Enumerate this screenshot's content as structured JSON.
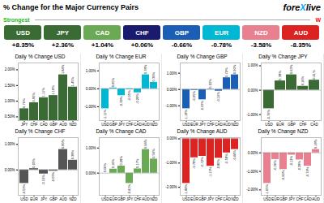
{
  "title": "% Change for the Major Currency Pairs",
  "annotations": [
    {
      "text": "fore"
    },
    {
      "text": "X",
      "color": "#00aaff"
    },
    {
      "text": "live"
    }
  ],
  "chart_data": [
    {
      "type": "ticker",
      "categories": [
        "USD",
        "JPY",
        "CAD",
        "CHF",
        "GBP",
        "EUR",
        "NZD",
        "AUD"
      ],
      "values": [
        8.35,
        2.36,
        1.04,
        0.06,
        -0.66,
        -0.78,
        -3.58,
        -8.35
      ],
      "value_labels": [
        "+8.35%",
        "+2.36%",
        "+1.04%",
        "+0.06%",
        "-0.66%",
        "-0.78%",
        "-3.58%",
        "-8.35%"
      ],
      "colors": [
        "#3a6b35",
        "#3a6b35",
        "#6aaa55",
        "#1a1a6e",
        "#1a5eb5",
        "#00b8d4",
        "#e88090",
        "#dd2222"
      ],
      "annotations": [
        {
          "text": "Strongest",
          "color": "#22bb22"
        },
        {
          "text": "W",
          "color": "red"
        }
      ],
      "data_labels": true
    },
    {
      "type": "bar",
      "title": "Daily % Change USD",
      "categories": [
        "JPY",
        "CHF",
        "CAD",
        "GBP",
        "AUD",
        "NZD"
      ],
      "values": [
        0.76,
        0.95,
        1.11,
        1.18,
        1.84,
        1.45
      ],
      "value_labels": [
        "0.76%",
        "0.95%",
        "1.11%",
        "1.18%",
        "1.84%",
        "1.45%"
      ],
      "color": "#3a6b35",
      "ylim": [
        0.382,
        2.218
      ],
      "yticks": [
        {
          "value": 0.5,
          "label": "0.50%"
        },
        {
          "value": 1,
          "label": "1.00%"
        },
        {
          "value": 1.5,
          "label": "1.50%"
        },
        {
          "value": 2,
          "label": "2.00%"
        }
      ],
      "data_labels": true
    },
    {
      "type": "bar",
      "title": "Daily % Change EUR",
      "categories": [
        "USD",
        "GBP",
        "JPY",
        "CHF",
        "CAD",
        "AUD",
        "NZD"
      ],
      "values": [
        -1.11,
        0.05,
        -0.38,
        -0.05,
        -0.22,
        0.78,
        0.36
      ],
      "value_labels": [
        "-1.11%",
        "0.05%",
        "-0.38%",
        "-0.05%",
        "-0.22%",
        "0.78%",
        "0.36%"
      ],
      "color": "#00b8d4",
      "ylim": [
        -1.7715,
        1.4415
      ],
      "yticks": [
        {
          "value": -1,
          "label": "-1.00%"
        },
        {
          "value": 0,
          "label": "0.00%"
        },
        {
          "value": 1,
          "label": "1.00%"
        }
      ],
      "data_labels": true
    },
    {
      "type": "bar",
      "title": "Daily % Change GBP",
      "categories": [
        "USD",
        "EUR",
        "JPY",
        "CHF",
        "CAD",
        "AUD",
        "NZD"
      ],
      "values": [
        -1.18,
        -0.05,
        -0.63,
        0.025,
        -0.1,
        0.72,
        0.9
      ],
      "value_labels": [
        "-1.18%",
        "-0.05%",
        "-0.63%",
        "0.03%",
        "-0.10%",
        "0.72%",
        "0.90%"
      ],
      "color": "#1a5eb5",
      "ylim": [
        -1.908,
        1.628
      ],
      "yticks": [
        {
          "value": -1,
          "label": "-1.00%"
        },
        {
          "value": 0,
          "label": "0.00%"
        },
        {
          "value": 1,
          "label": "1.00%"
        }
      ],
      "data_labels": true
    },
    {
      "type": "bar",
      "title": "Daily % Change JPY",
      "categories": [
        "USD",
        "EUR",
        "GBP",
        "CHF",
        "CAD"
      ],
      "values": [
        -0.76,
        0.38,
        0.63,
        0.16,
        0.41
      ],
      "value_labels": [
        "-0.76%",
        "0.38%",
        "0.63%",
        "0.16%",
        "0.41%"
      ],
      "color": "#3a6b35",
      "ylim": [
        -1.2465,
        1.1165
      ],
      "yticks": [
        {
          "value": -1,
          "label": "-1.00%"
        },
        {
          "value": 0,
          "label": "0.00%"
        },
        {
          "value": 1,
          "label": "1.00%"
        }
      ],
      "data_labels": true
    },
    {
      "type": "bar",
      "title": "Daily % Change CHF",
      "categories": [
        "USD",
        "EUR",
        "JPY",
        "GBP",
        "AUD",
        "NZD"
      ],
      "values": [
        -0.53,
        0.05,
        -0.16,
        -0.05,
        0.8,
        0.38
      ],
      "value_labels": [
        "-0.53%",
        "0.05%",
        "-0.16%",
        "-0.05%",
        "0.80%",
        "0.38%"
      ],
      "color": "#555555",
      "ylim": [
        -0.9955,
        1.2655
      ],
      "yticks": [
        {
          "value": 0,
          "label": "0.00%"
        },
        {
          "value": 1,
          "label": "1.00%"
        }
      ],
      "data_labels": true
    },
    {
      "type": "bar",
      "title": "Daily % Change CAD",
      "categories": [
        "USD",
        "EUR",
        "GBP",
        "JPY",
        "CHF",
        "AUD",
        "NZD"
      ],
      "values": [
        0.0,
        0.16,
        0.28,
        -0.41,
        0.17,
        0.94,
        0.56
      ],
      "value_labels": [
        "0.00%",
        "0.16%",
        "0.28%",
        "-0.41%",
        "0.17%",
        "0.94%",
        "0.56%"
      ],
      "color": "#6aaa55",
      "ylim": [
        -0.8825,
        1.4125
      ],
      "yticks": [
        {
          "value": 0,
          "label": "0.00%"
        },
        {
          "value": 1,
          "label": "1.00%"
        }
      ],
      "data_labels": true
    },
    {
      "type": "bar",
      "title": "Daily % Change AUD",
      "categories": [
        "USD",
        "EUR",
        "GBP",
        "JPY",
        "CHF",
        "CAD",
        "NZD"
      ],
      "values": [
        -1.84,
        -0.78,
        -0.72,
        -1.13,
        -0.8,
        -0.58,
        -0.44
      ],
      "value_labels": [
        "-1.84%",
        "-0.78%",
        "-0.72%",
        "-1.13%",
        "-0.80%",
        "-0.58%",
        "-0.44%"
      ],
      "color": "#dd2222",
      "ylim": [
        -2.33,
        0.05
      ],
      "yticks": [
        {
          "value": -2,
          "label": "-2.00%"
        },
        {
          "value": -1,
          "label": "-1.00%"
        },
        {
          "value": 0,
          "label": "0.00%"
        }
      ],
      "data_labels": true
    },
    {
      "type": "bar",
      "title": "Daily % Change NZD",
      "categories": [
        "USD",
        "EUR",
        "GBP",
        "JPY",
        "CHF",
        "CAD",
        "AUD"
      ],
      "values": [
        -1.65,
        -0.36,
        -0.9,
        -0.12,
        -0.38,
        -0.72,
        0.18
      ],
      "value_labels": [
        "-1.65%",
        "-0.36%",
        "-0.90%",
        "-0.12%",
        "-0.38%",
        "-0.72%",
        "0.18%"
      ],
      "color": "#e88090",
      "ylim": [
        -2.2905,
        0.8205
      ],
      "yticks": [
        {
          "value": -2,
          "label": "-2.00%"
        },
        {
          "value": -1,
          "label": "-1.00%"
        },
        {
          "value": 0,
          "label": "0.00%"
        }
      ],
      "data_labels": true
    }
  ]
}
